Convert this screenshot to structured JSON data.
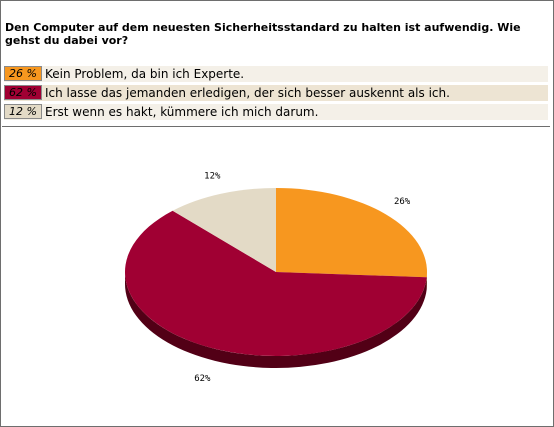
{
  "question": "Den Computer auf dem neuesten Sicherheitsstandard zu halten ist aufwendig. Wie gehst du dabei vor?",
  "options": [
    {
      "pct_label": "26 %",
      "text": "Kein Problem, da bin ich Experte.",
      "color": "#f7971f",
      "row_bg": "#f4f0e8"
    },
    {
      "pct_label": "62 %",
      "text": "Ich lasse das jemanden erledigen, der sich besser auskennt als ich.",
      "color": "#a00033",
      "row_bg": "#ede4d3"
    },
    {
      "pct_label": "12 %",
      "text": "Erst wenn es hakt, kümmere ich mich darum.",
      "color": "#e3dac6",
      "row_bg": "#f4f0e8"
    }
  ],
  "chart_data": {
    "type": "pie",
    "categories": [
      "Kein Problem, da bin ich Experte.",
      "Ich lasse das jemanden erledigen, der sich besser auskennt als ich.",
      "Erst wenn es hakt, kümmere ich mich darum."
    ],
    "values": [
      26,
      62,
      12
    ],
    "data_labels": [
      "26%",
      "62%",
      "12%"
    ],
    "colors": [
      "#f7971f",
      "#a00033",
      "#e3dac6"
    ],
    "side_colors": [
      "#a86410",
      "#520016",
      "#948a76"
    ]
  }
}
